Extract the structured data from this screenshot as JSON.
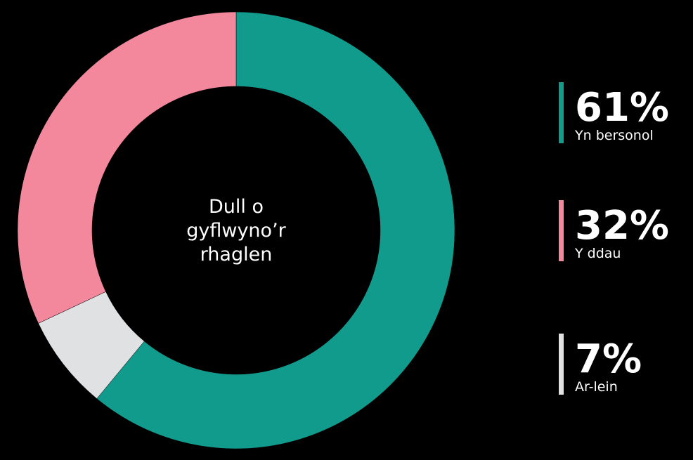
{
  "chart_data": {
    "type": "pie",
    "title": "Dull o gyflwyno’r rhaglen",
    "categories": [
      "Yn bersonol",
      "Ar-lein",
      "Y ddau"
    ],
    "values": [
      61,
      7,
      32
    ],
    "value_labels": [
      "61%",
      "7%",
      "32%"
    ],
    "colors": [
      "#119b8d",
      "#e0e1e3",
      "#f3889c"
    ]
  }
}
